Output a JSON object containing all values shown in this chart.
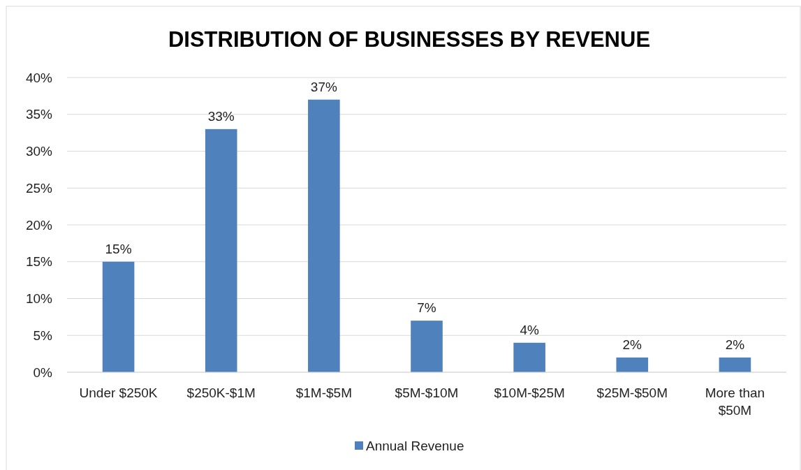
{
  "chart_data": {
    "type": "bar",
    "title": "DISTRIBUTION OF BUSINESSES BY REVENUE",
    "categories": [
      "Under $250K",
      "$250K-$1M",
      "$1M-$5M",
      "$5M-$10M",
      "$10M-$25M",
      "$25M-$50M",
      "More than $50M"
    ],
    "series": [
      {
        "name": "Annual Revenue",
        "color": "#4f81bd",
        "values": [
          15,
          33,
          37,
          7,
          4,
          2,
          2
        ],
        "value_labels": [
          "15%",
          "33%",
          "37%",
          "7%",
          "4%",
          "2%",
          "2%"
        ]
      }
    ],
    "ylim": [
      0,
      40
    ],
    "yticks": [
      {
        "value": 0,
        "label": "0%"
      },
      {
        "value": 5,
        "label": "5%"
      },
      {
        "value": 10,
        "label": "10%"
      },
      {
        "value": 15,
        "label": "15%"
      },
      {
        "value": 20,
        "label": "20%"
      },
      {
        "value": 25,
        "label": "25%"
      },
      {
        "value": 30,
        "label": "30%"
      },
      {
        "value": 35,
        "label": "35%"
      },
      {
        "value": 40,
        "label": "40%"
      }
    ],
    "grid": "y",
    "legend": "bottom"
  }
}
